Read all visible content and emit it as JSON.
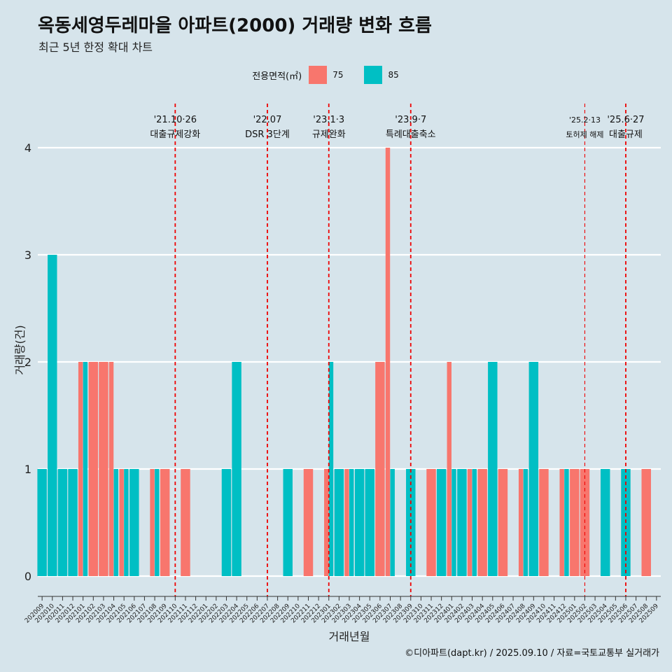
{
  "header": {
    "title": "옥동세영두레마을 아파트(2000) 거래량 변화 흐름",
    "subtitle": "최근 5년 한정 확대 차트"
  },
  "legend": {
    "title": "전용면적(㎡)",
    "items": [
      {
        "name": "75",
        "color": "#f8766d"
      },
      {
        "name": "85",
        "color": "#00bfc4"
      }
    ]
  },
  "caption": "©디아파트(dapt.kr) / 2025.09.10 / 자료=국토교통부 실거래가",
  "chart_data": {
    "type": "bar",
    "xlabel": "거래년월",
    "ylabel": "거래량(건)",
    "ylim": [
      0,
      4
    ],
    "yticks": [
      0,
      1,
      2,
      3,
      4
    ],
    "grid": true,
    "legend_position": "top",
    "categories": [
      "202009",
      "202010",
      "202011",
      "202012",
      "202101",
      "202102",
      "202103",
      "202104",
      "202105",
      "202106",
      "202107",
      "202108",
      "202109",
      "202110",
      "202111",
      "202112",
      "202201",
      "202202",
      "202203",
      "202204",
      "202205",
      "202206",
      "202207",
      "202208",
      "202209",
      "202210",
      "202211",
      "202212",
      "202301",
      "202302",
      "202303",
      "202304",
      "202305",
      "202306",
      "202307",
      "202308",
      "202309",
      "202310",
      "202311",
      "202312",
      "202401",
      "202402",
      "202403",
      "202404",
      "202405",
      "202406",
      "202407",
      "202408",
      "202409",
      "202410",
      "202411",
      "202412",
      "202501",
      "202502",
      "202503",
      "202504",
      "202505",
      "202506",
      "202507",
      "202508",
      "202509"
    ],
    "series": [
      {
        "name": "75",
        "color": "#f8766d",
        "values": [
          0,
          0,
          0,
          0,
          2,
          2,
          2,
          2,
          1,
          0,
          0,
          1,
          1,
          0,
          1,
          0,
          0,
          0,
          0,
          0,
          0,
          0,
          0,
          0,
          0,
          0,
          1,
          0,
          1,
          0,
          1,
          0,
          0,
          2,
          4,
          0,
          0,
          0,
          1,
          0,
          2,
          0,
          1,
          1,
          0,
          1,
          0,
          1,
          0,
          1,
          0,
          1,
          1,
          1,
          0,
          0,
          0,
          0,
          0,
          1,
          0
        ]
      },
      {
        "name": "85",
        "color": "#00bfc4",
        "values": [
          1,
          3,
          1,
          1,
          2,
          0,
          0,
          1,
          1,
          1,
          0,
          1,
          0,
          0,
          0,
          0,
          0,
          0,
          1,
          2,
          0,
          0,
          0,
          0,
          1,
          0,
          0,
          0,
          2,
          1,
          1,
          1,
          1,
          0,
          1,
          0,
          1,
          0,
          0,
          1,
          1,
          1,
          1,
          0,
          2,
          0,
          0,
          1,
          2,
          0,
          0,
          1,
          0,
          0,
          0,
          1,
          0,
          1,
          0,
          0,
          0
        ]
      }
    ],
    "events": [
      {
        "date": "'21.10·26",
        "label": "대출규제강화",
        "x": "202110",
        "major": true
      },
      {
        "date": "'22.07",
        "label": "DSR 3단계",
        "x": "202207",
        "major": true
      },
      {
        "date": "'23.1·3",
        "label": "규제완화",
        "x": "202301",
        "major": true
      },
      {
        "date": "'23.9·7",
        "label": "특례대출축소",
        "x": "202309",
        "major": true
      },
      {
        "date": "'25.2·13",
        "label": "토허제 해제",
        "x": "202502",
        "major": false
      },
      {
        "date": "'25.6·27",
        "label": "대출규제",
        "x": "202506",
        "major": true
      }
    ]
  }
}
